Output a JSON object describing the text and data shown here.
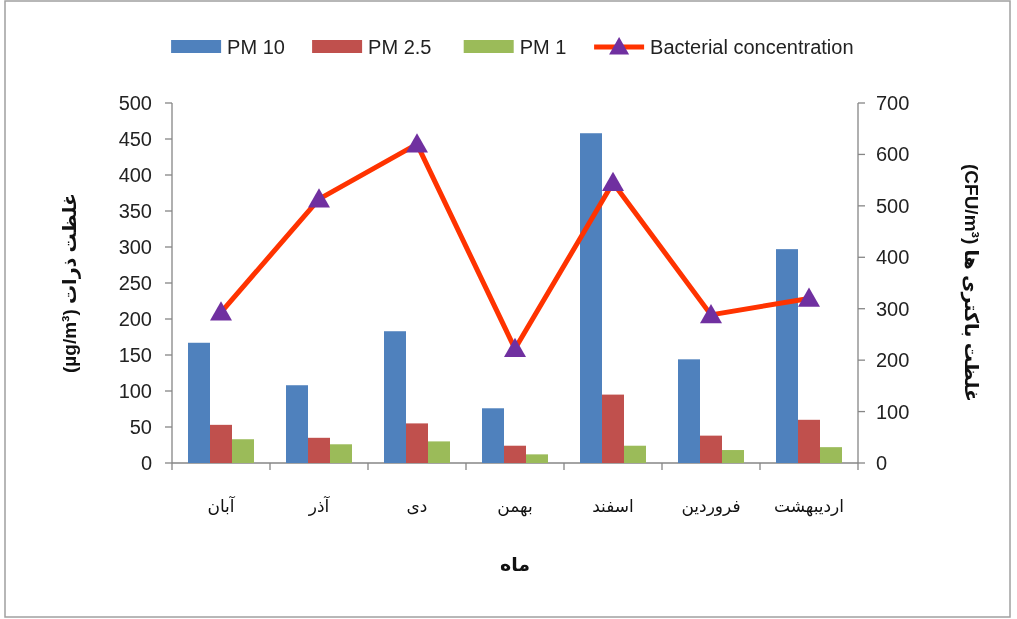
{
  "chart_data": {
    "type": "bar",
    "xlabel": "ماه",
    "ylabel": "غلظت ذرات (µg/m³)",
    "y2label": "غلظت باکتری ها (CFU/m³)",
    "categories": [
      "آبان",
      "آذر",
      "دی",
      "بهمن",
      "اسفند",
      "فروردین",
      "اردیبهشت"
    ],
    "series": [
      {
        "name": "PM 10",
        "color": "#4f81bd",
        "values": [
          167,
          108,
          183,
          76,
          458,
          144,
          297
        ]
      },
      {
        "name": "PM 2.5",
        "color": "#c0504d",
        "values": [
          53,
          35,
          55,
          24,
          95,
          38,
          60
        ]
      },
      {
        "name": "PM 1",
        "color": "#9bbb59",
        "values": [
          33,
          26,
          30,
          12,
          24,
          18,
          22
        ]
      },
      {
        "name": "Bacterial concentration",
        "type": "line",
        "axis": "y2",
        "color": "#ff3300",
        "values": [
          293,
          513,
          620,
          222,
          545,
          288,
          320
        ]
      }
    ],
    "ylim": [
      0,
      500
    ],
    "yticks": [
      0,
      50,
      100,
      150,
      200,
      250,
      300,
      350,
      400,
      450,
      500
    ],
    "y2lim": [
      0,
      700
    ],
    "y2ticks": [
      0,
      100,
      200,
      300,
      400,
      500,
      600,
      700
    ],
    "legend": "top",
    "grid": false,
    "marker": "triangle",
    "line_style": "solid"
  }
}
